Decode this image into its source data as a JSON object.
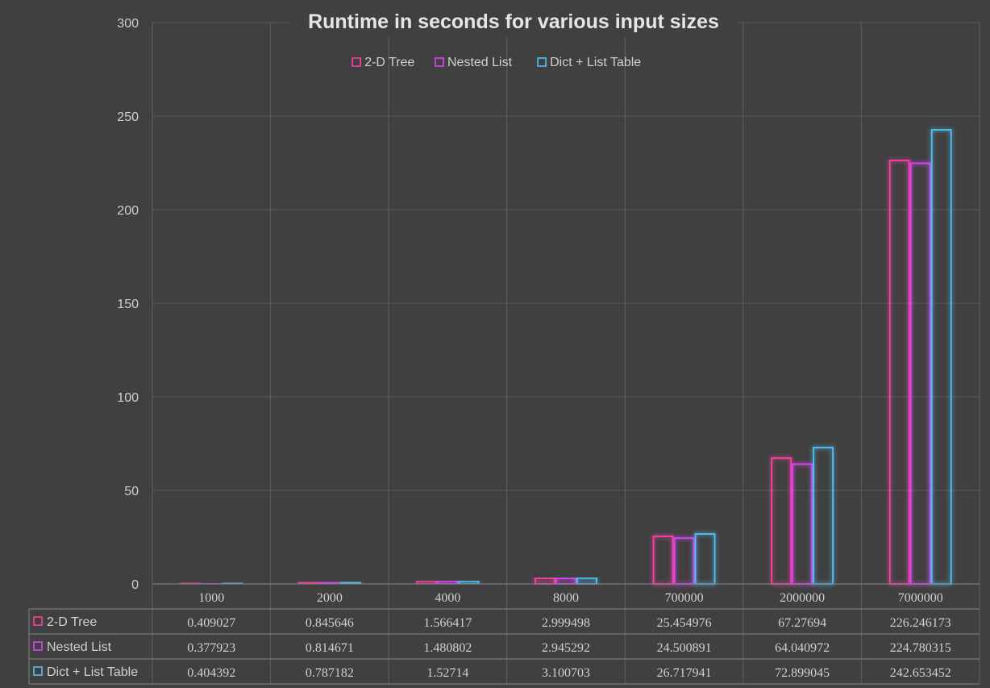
{
  "chart_data": {
    "type": "bar",
    "title": "Runtime in seconds for various input sizes",
    "xlabel": "",
    "ylabel": "",
    "ylim": [
      0,
      300
    ],
    "yticks": [
      0,
      50,
      100,
      150,
      200,
      250,
      300
    ],
    "legend_position": "top-center",
    "data_table": true,
    "categories": [
      "1000",
      "2000",
      "4000",
      "8000",
      "700000",
      "2000000",
      "7000000"
    ],
    "series": [
      {
        "name": "2-D Tree",
        "color": "#ff3fa4",
        "values": [
          0.409027,
          0.845646,
          1.566417,
          2.999498,
          25.454976,
          67.27694,
          226.246173
        ],
        "labels": [
          "0.409027",
          "0.845646",
          "1.566417",
          "2.999498",
          "25.454976",
          "67.27694",
          "226.246173"
        ]
      },
      {
        "name": "Nested List",
        "color": "#e040fb",
        "values": [
          0.377923,
          0.814671,
          1.480802,
          2.945292,
          24.500891,
          64.040972,
          224.780315
        ],
        "labels": [
          "0.377923",
          "0.814671",
          "1.480802",
          "2.945292",
          "24.500891",
          "64.040972",
          "224.780315"
        ]
      },
      {
        "name": "Dict + List Table",
        "color": "#4fc3f7",
        "values": [
          0.404392,
          0.787182,
          1.52714,
          3.100703,
          26.717941,
          72.899045,
          242.653452
        ],
        "labels": [
          "0.404392",
          "0.787182",
          "1.52714",
          "3.100703",
          "26.717941",
          "72.899045",
          "242.653452"
        ]
      }
    ]
  }
}
